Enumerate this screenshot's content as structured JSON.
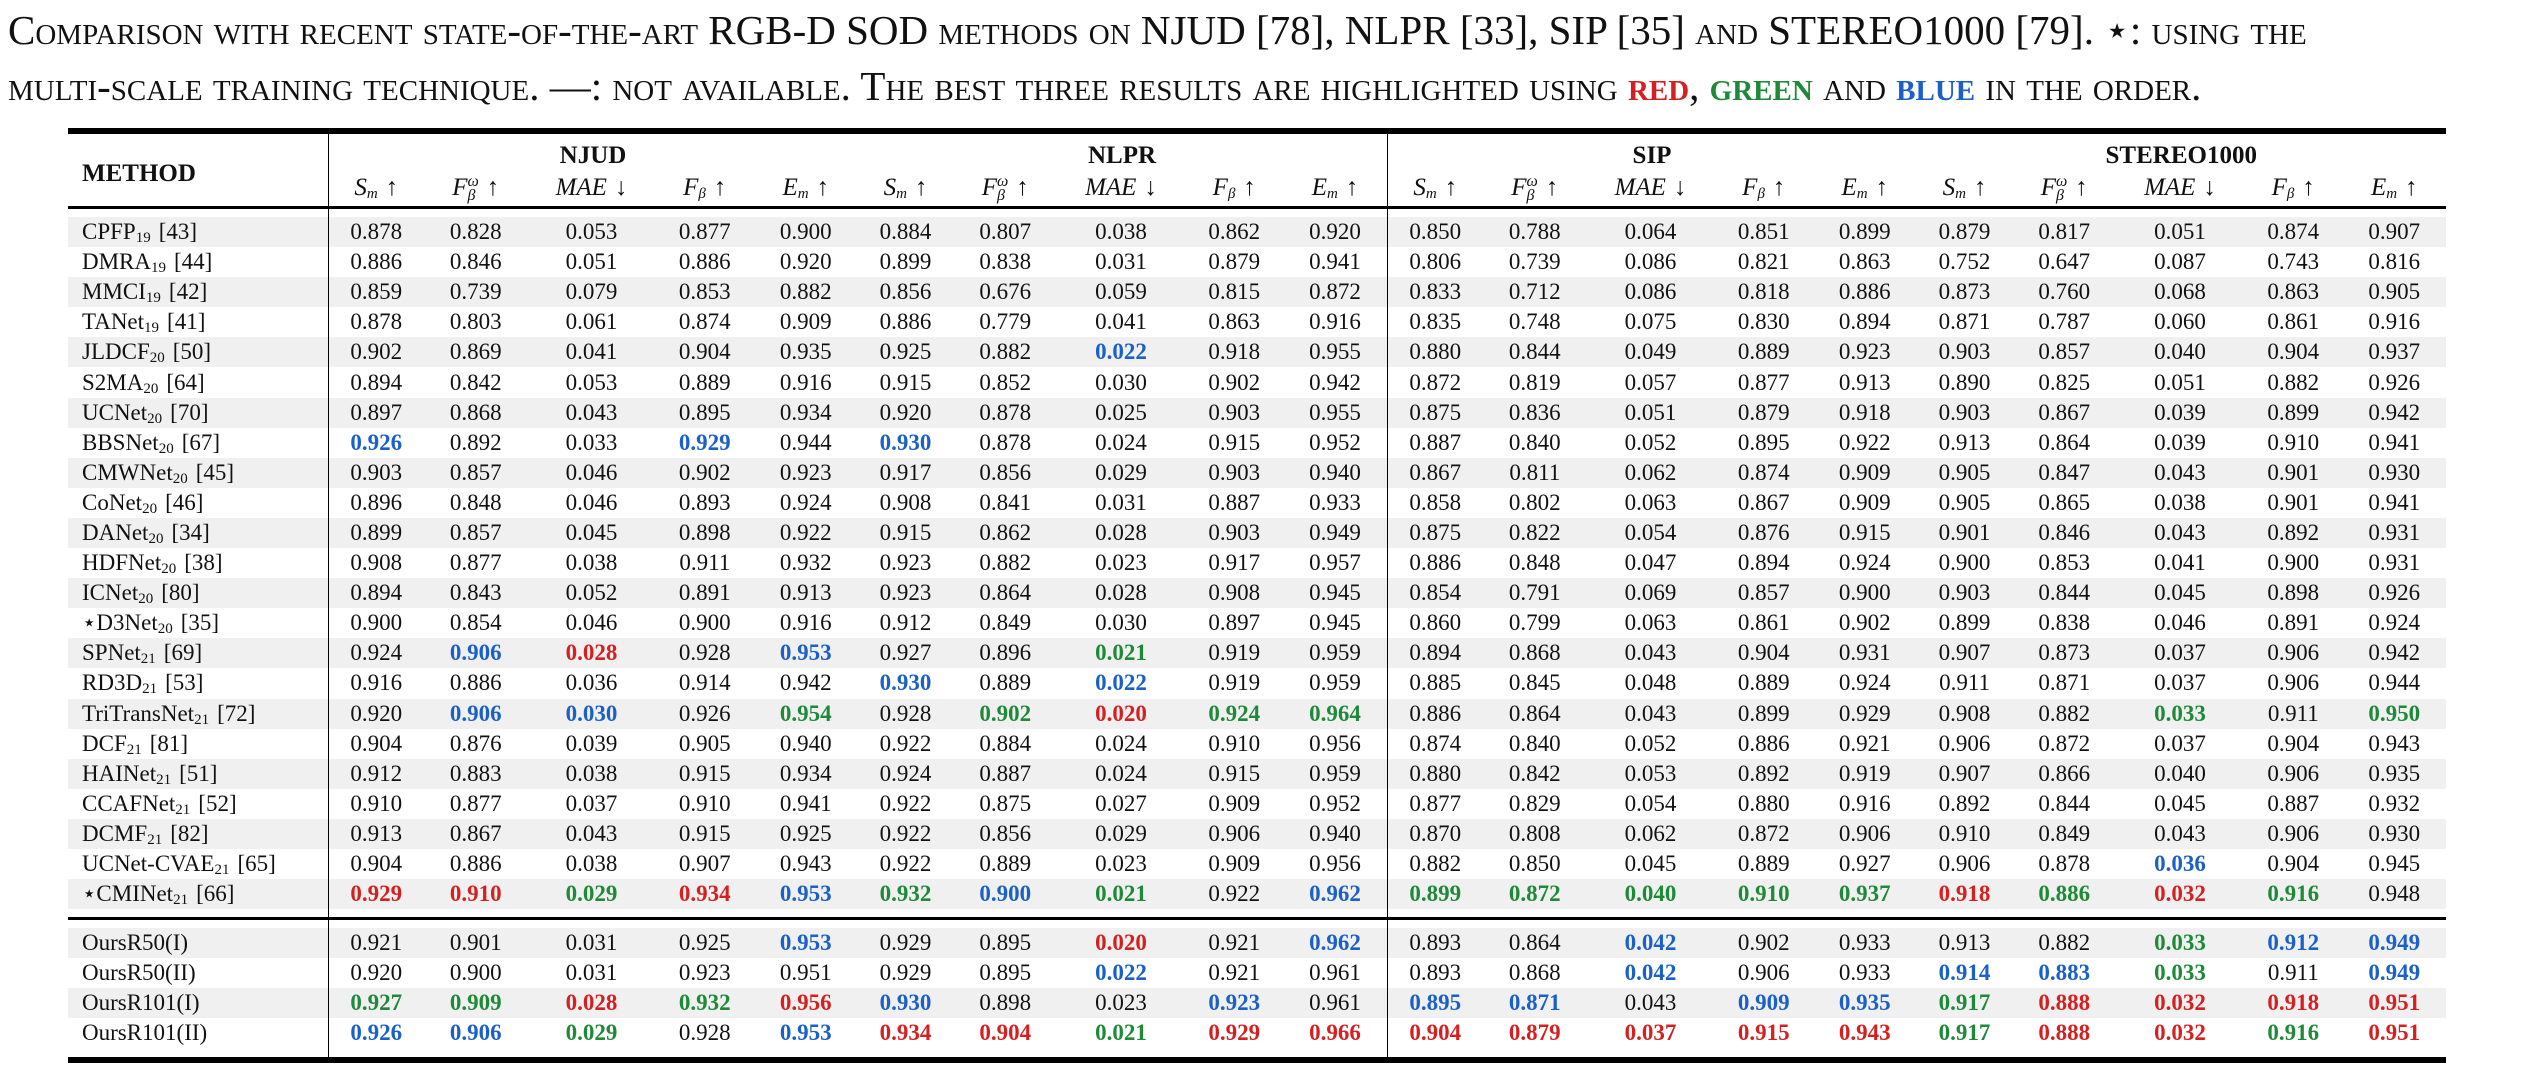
{
  "caption": {
    "line1": "Comparison with recent state-of-the-art RGB-D SOD methods on NJUD [78], NLPR [33], SIP [35] and STEREO1000 [79]. ⋆: using the",
    "line2_pre": "multi-scale training technique. —: not available. The best three results are highlighted using ",
    "red": "red",
    "sep1": ", ",
    "green": "green",
    "and": " and ",
    "blue": "blue",
    "end": " in the order."
  },
  "colors": {
    "red": "#d42020",
    "green": "#1e8a38",
    "blue": "#1a60c8"
  },
  "header": {
    "method_label": "METHOD",
    "datasets": [
      "NJUD",
      "NLPR",
      "SIP",
      "STEREO1000"
    ],
    "metrics": [
      {
        "base": "S",
        "sub": "m",
        "sup": "",
        "arrow": "↑"
      },
      {
        "base": "F",
        "sub": "β",
        "sup": "ω",
        "arrow": "↑"
      },
      {
        "base": "MAE",
        "sub": "",
        "sup": "",
        "arrow": "↓"
      },
      {
        "base": "F",
        "sub": "β",
        "sup": "",
        "arrow": "↑"
      },
      {
        "base": "E",
        "sub": "m",
        "sup": "",
        "arrow": "↑"
      }
    ]
  },
  "rows": [
    {
      "name": "CPFP",
      "sub": "19",
      "ref": "[43]",
      "vals": [
        "0.878",
        "0.828",
        "0.053",
        "0.877",
        "0.900",
        "0.884",
        "0.807",
        "0.038",
        "0.862",
        "0.920",
        "0.850",
        "0.788",
        "0.064",
        "0.851",
        "0.899",
        "0.879",
        "0.817",
        "0.051",
        "0.874",
        "0.907"
      ],
      "hl": {}
    },
    {
      "name": "DMRA",
      "sub": "19",
      "ref": "[44]",
      "vals": [
        "0.886",
        "0.846",
        "0.051",
        "0.886",
        "0.920",
        "0.899",
        "0.838",
        "0.031",
        "0.879",
        "0.941",
        "0.806",
        "0.739",
        "0.086",
        "0.821",
        "0.863",
        "0.752",
        "0.647",
        "0.087",
        "0.743",
        "0.816"
      ],
      "hl": {}
    },
    {
      "name": "MMCI",
      "sub": "19",
      "ref": "[42]",
      "vals": [
        "0.859",
        "0.739",
        "0.079",
        "0.853",
        "0.882",
        "0.856",
        "0.676",
        "0.059",
        "0.815",
        "0.872",
        "0.833",
        "0.712",
        "0.086",
        "0.818",
        "0.886",
        "0.873",
        "0.760",
        "0.068",
        "0.863",
        "0.905"
      ],
      "hl": {}
    },
    {
      "name": "TANet",
      "sub": "19",
      "ref": "[41]",
      "vals": [
        "0.878",
        "0.803",
        "0.061",
        "0.874",
        "0.909",
        "0.886",
        "0.779",
        "0.041",
        "0.863",
        "0.916",
        "0.835",
        "0.748",
        "0.075",
        "0.830",
        "0.894",
        "0.871",
        "0.787",
        "0.060",
        "0.861",
        "0.916"
      ],
      "hl": {}
    },
    {
      "name": "JLDCF",
      "sub": "20",
      "ref": "[50]",
      "vals": [
        "0.902",
        "0.869",
        "0.041",
        "0.904",
        "0.935",
        "0.925",
        "0.882",
        "0.022",
        "0.918",
        "0.955",
        "0.880",
        "0.844",
        "0.049",
        "0.889",
        "0.923",
        "0.903",
        "0.857",
        "0.040",
        "0.904",
        "0.937"
      ],
      "hl": {
        "7": 3
      }
    },
    {
      "name": "S2MA",
      "sub": "20",
      "ref": "[64]",
      "vals": [
        "0.894",
        "0.842",
        "0.053",
        "0.889",
        "0.916",
        "0.915",
        "0.852",
        "0.030",
        "0.902",
        "0.942",
        "0.872",
        "0.819",
        "0.057",
        "0.877",
        "0.913",
        "0.890",
        "0.825",
        "0.051",
        "0.882",
        "0.926"
      ],
      "hl": {}
    },
    {
      "name": "UCNet",
      "sub": "20",
      "ref": "[70]",
      "vals": [
        "0.897",
        "0.868",
        "0.043",
        "0.895",
        "0.934",
        "0.920",
        "0.878",
        "0.025",
        "0.903",
        "0.955",
        "0.875",
        "0.836",
        "0.051",
        "0.879",
        "0.918",
        "0.903",
        "0.867",
        "0.039",
        "0.899",
        "0.942"
      ],
      "hl": {}
    },
    {
      "name": "BBSNet",
      "sub": "20",
      "ref": "[67]",
      "vals": [
        "0.926",
        "0.892",
        "0.033",
        "0.929",
        "0.944",
        "0.930",
        "0.878",
        "0.024",
        "0.915",
        "0.952",
        "0.887",
        "0.840",
        "0.052",
        "0.895",
        "0.922",
        "0.913",
        "0.864",
        "0.039",
        "0.910",
        "0.941"
      ],
      "hl": {
        "0": 3,
        "3": 3,
        "5": 3
      }
    },
    {
      "name": "CMWNet",
      "sub": "20",
      "ref": "[45]",
      "vals": [
        "0.903",
        "0.857",
        "0.046",
        "0.902",
        "0.923",
        "0.917",
        "0.856",
        "0.029",
        "0.903",
        "0.940",
        "0.867",
        "0.811",
        "0.062",
        "0.874",
        "0.909",
        "0.905",
        "0.847",
        "0.043",
        "0.901",
        "0.930"
      ],
      "hl": {}
    },
    {
      "name": "CoNet",
      "sub": "20",
      "ref": "[46]",
      "vals": [
        "0.896",
        "0.848",
        "0.046",
        "0.893",
        "0.924",
        "0.908",
        "0.841",
        "0.031",
        "0.887",
        "0.933",
        "0.858",
        "0.802",
        "0.063",
        "0.867",
        "0.909",
        "0.905",
        "0.865",
        "0.038",
        "0.901",
        "0.941"
      ],
      "hl": {}
    },
    {
      "name": "DANet",
      "sub": "20",
      "ref": "[34]",
      "vals": [
        "0.899",
        "0.857",
        "0.045",
        "0.898",
        "0.922",
        "0.915",
        "0.862",
        "0.028",
        "0.903",
        "0.949",
        "0.875",
        "0.822",
        "0.054",
        "0.876",
        "0.915",
        "0.901",
        "0.846",
        "0.043",
        "0.892",
        "0.931"
      ],
      "hl": {}
    },
    {
      "name": "HDFNet",
      "sub": "20",
      "ref": "[38]",
      "vals": [
        "0.908",
        "0.877",
        "0.038",
        "0.911",
        "0.932",
        "0.923",
        "0.882",
        "0.023",
        "0.917",
        "0.957",
        "0.886",
        "0.848",
        "0.047",
        "0.894",
        "0.924",
        "0.900",
        "0.853",
        "0.041",
        "0.900",
        "0.931"
      ],
      "hl": {}
    },
    {
      "name": "ICNet",
      "sub": "20",
      "ref": "[80]",
      "vals": [
        "0.894",
        "0.843",
        "0.052",
        "0.891",
        "0.913",
        "0.923",
        "0.864",
        "0.028",
        "0.908",
        "0.945",
        "0.854",
        "0.791",
        "0.069",
        "0.857",
        "0.900",
        "0.903",
        "0.844",
        "0.045",
        "0.898",
        "0.926"
      ],
      "hl": {}
    },
    {
      "name": "⋆D3Net",
      "sub": "20",
      "ref": "[35]",
      "vals": [
        "0.900",
        "0.854",
        "0.046",
        "0.900",
        "0.916",
        "0.912",
        "0.849",
        "0.030",
        "0.897",
        "0.945",
        "0.860",
        "0.799",
        "0.063",
        "0.861",
        "0.902",
        "0.899",
        "0.838",
        "0.046",
        "0.891",
        "0.924"
      ],
      "hl": {}
    },
    {
      "name": "SPNet",
      "sub": "21",
      "ref": "[69]",
      "vals": [
        "0.924",
        "0.906",
        "0.028",
        "0.928",
        "0.953",
        "0.927",
        "0.896",
        "0.021",
        "0.919",
        "0.959",
        "0.894",
        "0.868",
        "0.043",
        "0.904",
        "0.931",
        "0.907",
        "0.873",
        "0.037",
        "0.906",
        "0.942"
      ],
      "hl": {
        "1": 3,
        "2": 1,
        "4": 3,
        "7": 2
      }
    },
    {
      "name": "RD3D",
      "sub": "21",
      "ref": "[53]",
      "vals": [
        "0.916",
        "0.886",
        "0.036",
        "0.914",
        "0.942",
        "0.930",
        "0.889",
        "0.022",
        "0.919",
        "0.959",
        "0.885",
        "0.845",
        "0.048",
        "0.889",
        "0.924",
        "0.911",
        "0.871",
        "0.037",
        "0.906",
        "0.944"
      ],
      "hl": {
        "5": 3,
        "7": 3
      }
    },
    {
      "name": "TriTransNet",
      "sub": "21",
      "ref": "[72]",
      "vals": [
        "0.920",
        "0.906",
        "0.030",
        "0.926",
        "0.954",
        "0.928",
        "0.902",
        "0.020",
        "0.924",
        "0.964",
        "0.886",
        "0.864",
        "0.043",
        "0.899",
        "0.929",
        "0.908",
        "0.882",
        "0.033",
        "0.911",
        "0.950"
      ],
      "hl": {
        "1": 3,
        "2": 3,
        "4": 2,
        "6": 2,
        "7": 1,
        "8": 2,
        "9": 2,
        "17": 2,
        "19": 2
      }
    },
    {
      "name": "DCF",
      "sub": "21",
      "ref": "[81]",
      "vals": [
        "0.904",
        "0.876",
        "0.039",
        "0.905",
        "0.940",
        "0.922",
        "0.884",
        "0.024",
        "0.910",
        "0.956",
        "0.874",
        "0.840",
        "0.052",
        "0.886",
        "0.921",
        "0.906",
        "0.872",
        "0.037",
        "0.904",
        "0.943"
      ],
      "hl": {}
    },
    {
      "name": "HAINet",
      "sub": "21",
      "ref": "[51]",
      "vals": [
        "0.912",
        "0.883",
        "0.038",
        "0.915",
        "0.934",
        "0.924",
        "0.887",
        "0.024",
        "0.915",
        "0.959",
        "0.880",
        "0.842",
        "0.053",
        "0.892",
        "0.919",
        "0.907",
        "0.866",
        "0.040",
        "0.906",
        "0.935"
      ],
      "hl": {}
    },
    {
      "name": "CCAFNet",
      "sub": "21",
      "ref": "[52]",
      "vals": [
        "0.910",
        "0.877",
        "0.037",
        "0.910",
        "0.941",
        "0.922",
        "0.875",
        "0.027",
        "0.909",
        "0.952",
        "0.877",
        "0.829",
        "0.054",
        "0.880",
        "0.916",
        "0.892",
        "0.844",
        "0.045",
        "0.887",
        "0.932"
      ],
      "hl": {}
    },
    {
      "name": "DCMF",
      "sub": "21",
      "ref": "[82]",
      "vals": [
        "0.913",
        "0.867",
        "0.043",
        "0.915",
        "0.925",
        "0.922",
        "0.856",
        "0.029",
        "0.906",
        "0.940",
        "0.870",
        "0.808",
        "0.062",
        "0.872",
        "0.906",
        "0.910",
        "0.849",
        "0.043",
        "0.906",
        "0.930"
      ],
      "hl": {}
    },
    {
      "name": "UCNet-CVAE",
      "sub": "21",
      "ref": "[65]",
      "vals": [
        "0.904",
        "0.886",
        "0.038",
        "0.907",
        "0.943",
        "0.922",
        "0.889",
        "0.023",
        "0.909",
        "0.956",
        "0.882",
        "0.850",
        "0.045",
        "0.889",
        "0.927",
        "0.906",
        "0.878",
        "0.036",
        "0.904",
        "0.945"
      ],
      "hl": {
        "17": 3
      }
    },
    {
      "name": "⋆CMINet",
      "sub": "21",
      "ref": "[66]",
      "vals": [
        "0.929",
        "0.910",
        "0.029",
        "0.934",
        "0.953",
        "0.932",
        "0.900",
        "0.021",
        "0.922",
        "0.962",
        "0.899",
        "0.872",
        "0.040",
        "0.910",
        "0.937",
        "0.918",
        "0.886",
        "0.032",
        "0.916",
        "0.948"
      ],
      "hl": {
        "0": 1,
        "1": 1,
        "2": 2,
        "3": 1,
        "4": 3,
        "5": 2,
        "6": 3,
        "7": 2,
        "9": 3,
        "10": 2,
        "11": 2,
        "12": 2,
        "13": 2,
        "14": 2,
        "15": 1,
        "16": 2,
        "17": 1,
        "18": 2
      }
    }
  ],
  "ours": [
    {
      "name": "OursR50(I)",
      "vals": [
        "0.921",
        "0.901",
        "0.031",
        "0.925",
        "0.953",
        "0.929",
        "0.895",
        "0.020",
        "0.921",
        "0.962",
        "0.893",
        "0.864",
        "0.042",
        "0.902",
        "0.933",
        "0.913",
        "0.882",
        "0.033",
        "0.912",
        "0.949"
      ],
      "hl": {
        "4": 3,
        "7": 1,
        "9": 3,
        "12": 3,
        "17": 2,
        "18": 3,
        "19": 3
      }
    },
    {
      "name": "OursR50(II)",
      "vals": [
        "0.920",
        "0.900",
        "0.031",
        "0.923",
        "0.951",
        "0.929",
        "0.895",
        "0.022",
        "0.921",
        "0.961",
        "0.893",
        "0.868",
        "0.042",
        "0.906",
        "0.933",
        "0.914",
        "0.883",
        "0.033",
        "0.911",
        "0.949"
      ],
      "hl": {
        "7": 3,
        "12": 3,
        "15": 3,
        "16": 3,
        "17": 2,
        "19": 3
      }
    },
    {
      "name": "OursR101(I)",
      "vals": [
        "0.927",
        "0.909",
        "0.028",
        "0.932",
        "0.956",
        "0.930",
        "0.898",
        "0.023",
        "0.923",
        "0.961",
        "0.895",
        "0.871",
        "0.043",
        "0.909",
        "0.935",
        "0.917",
        "0.888",
        "0.032",
        "0.918",
        "0.951"
      ],
      "hl": {
        "0": 2,
        "1": 2,
        "2": 1,
        "3": 2,
        "4": 1,
        "5": 3,
        "8": 3,
        "10": 3,
        "11": 3,
        "13": 3,
        "14": 3,
        "15": 2,
        "16": 1,
        "17": 1,
        "18": 1,
        "19": 1
      }
    },
    {
      "name": "OursR101(II)",
      "vals": [
        "0.926",
        "0.906",
        "0.029",
        "0.928",
        "0.953",
        "0.934",
        "0.904",
        "0.021",
        "0.929",
        "0.966",
        "0.904",
        "0.879",
        "0.037",
        "0.915",
        "0.943",
        "0.917",
        "0.888",
        "0.032",
        "0.916",
        "0.951"
      ],
      "hl": {
        "0": 3,
        "1": 3,
        "2": 2,
        "4": 3,
        "5": 1,
        "6": 1,
        "7": 2,
        "8": 1,
        "9": 1,
        "10": 1,
        "11": 1,
        "12": 1,
        "13": 1,
        "14": 1,
        "15": 2,
        "16": 1,
        "17": 1,
        "18": 2,
        "19": 1
      }
    }
  ]
}
